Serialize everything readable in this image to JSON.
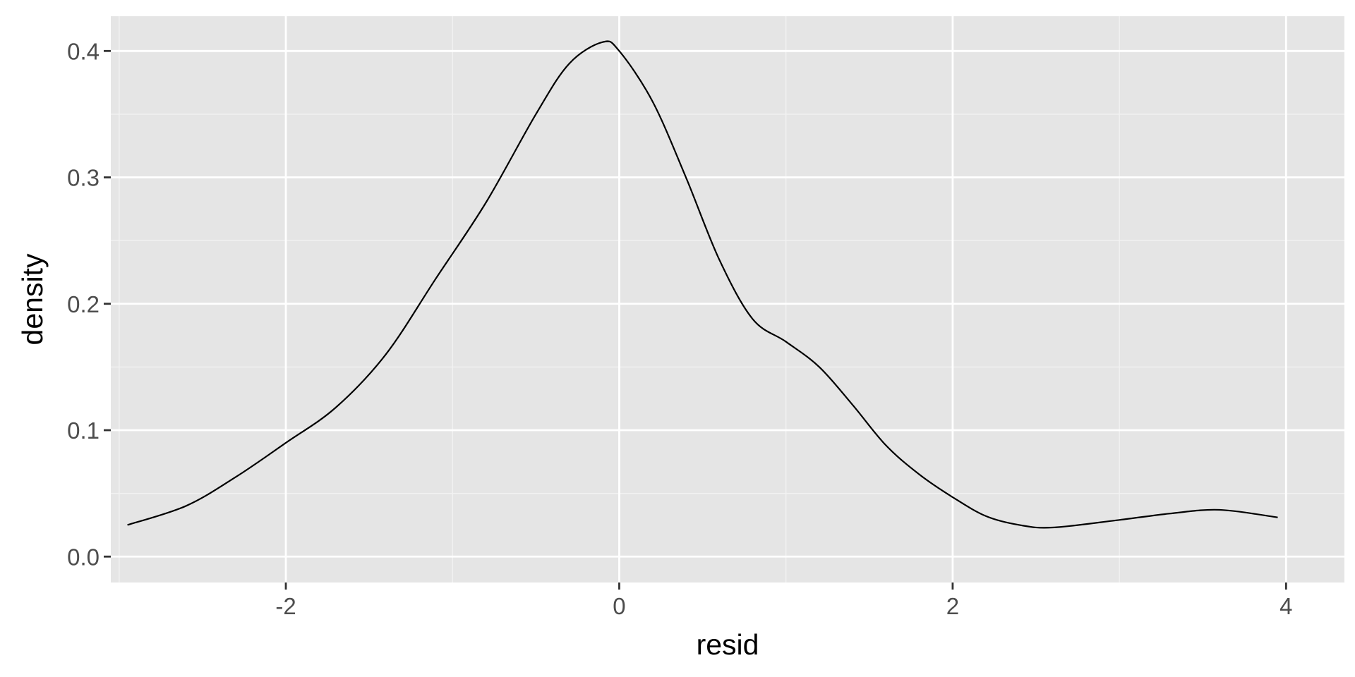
{
  "chart_data": {
    "type": "line",
    "title": "",
    "xlabel": "resid",
    "ylabel": "density",
    "xlim": [
      -3.05,
      4.35
    ],
    "ylim": [
      -0.0205,
      0.4275
    ],
    "x_ticks": [
      -2,
      0,
      2,
      4
    ],
    "x_tick_labels": [
      "-2",
      "0",
      "2",
      "4"
    ],
    "x_minor_ticks": [
      -3,
      -1,
      1,
      3
    ],
    "y_ticks": [
      0.0,
      0.1,
      0.2,
      0.3,
      0.4
    ],
    "y_tick_labels": [
      "0.0",
      "0.1",
      "0.2",
      "0.3",
      "0.4"
    ],
    "y_minor_ticks": [
      0.05,
      0.15,
      0.25,
      0.35
    ],
    "grid": true,
    "legend": "none",
    "colors": {
      "panel_background": "#e5e5e5",
      "grid_major": "#ffffff",
      "grid_minor": "#f2f2f2",
      "line": "#000000",
      "tick_label": "#4d4d4d",
      "axis_title": "#000000",
      "tick_mark": "#333333"
    },
    "series": [
      {
        "x": [
          -2.95,
          -2.6,
          -2.3,
          -2.0,
          -1.7,
          -1.4,
          -1.1,
          -0.8,
          -0.5,
          -0.3,
          -0.1,
          0.0,
          0.2,
          0.4,
          0.6,
          0.8,
          1.0,
          1.2,
          1.4,
          1.6,
          1.8,
          2.0,
          2.2,
          2.4,
          2.6,
          3.0,
          3.3,
          3.6,
          3.95
        ],
        "y": [
          0.025,
          0.04,
          0.063,
          0.09,
          0.118,
          0.16,
          0.22,
          0.28,
          0.35,
          0.39,
          0.407,
          0.4,
          0.36,
          0.3,
          0.235,
          0.188,
          0.17,
          0.15,
          0.12,
          0.088,
          0.065,
          0.047,
          0.032,
          0.025,
          0.023,
          0.029,
          0.034,
          0.037,
          0.031
        ]
      }
    ]
  }
}
